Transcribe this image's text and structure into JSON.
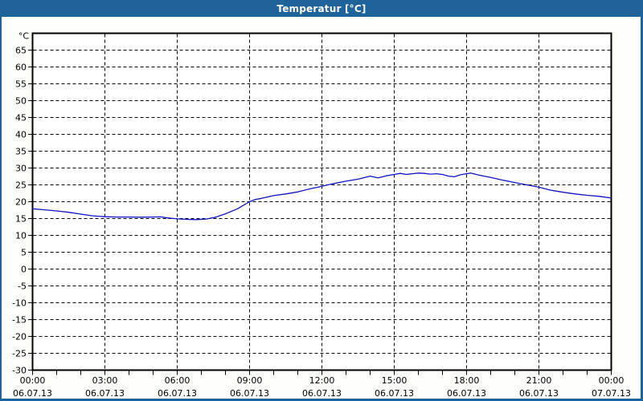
{
  "window": {
    "title": "Temperatur [°C]"
  },
  "colors": {
    "titlebar_bg": "#1e6399",
    "window_border": "#1e6399",
    "page_bg": "#fdfffd",
    "plot_bg": "#ffffff",
    "plot_border": "#000000",
    "grid": "#000000",
    "tick": "#000000",
    "label_text": "#000000",
    "title_text": "#ffffff",
    "line": "#1212c4"
  },
  "chart_data": {
    "type": "line",
    "title": "Temperatur [°C]",
    "ylabel_unit": "°C",
    "xlim_hours": [
      0,
      24
    ],
    "ylim": [
      -30,
      70
    ],
    "grid": "dashed",
    "y_tick_step": 5,
    "y_ticks": [
      65,
      60,
      55,
      50,
      45,
      40,
      35,
      30,
      25,
      20,
      15,
      10,
      5,
      0,
      -5,
      -10,
      -15,
      -20,
      -25,
      -30
    ],
    "x_major_ticks": [
      {
        "hour": 0,
        "time": "00:00",
        "date": "06.07.13"
      },
      {
        "hour": 3,
        "time": "03:00",
        "date": "06.07.13"
      },
      {
        "hour": 6,
        "time": "06:00",
        "date": "06.07.13"
      },
      {
        "hour": 9,
        "time": "09:00",
        "date": "06.07.13"
      },
      {
        "hour": 12,
        "time": "12:00",
        "date": "06.07.13"
      },
      {
        "hour": 15,
        "time": "15:00",
        "date": "06.07.13"
      },
      {
        "hour": 18,
        "time": "18:00",
        "date": "06.07.13"
      },
      {
        "hour": 21,
        "time": "21:00",
        "date": "06.07.13"
      },
      {
        "hour": 24,
        "time": "00:00",
        "date": "07.07.13"
      }
    ],
    "x_minor_tick_interval_hours": 1,
    "x_vertical_gridline_hours": [
      3,
      6,
      9,
      12,
      15,
      18,
      21
    ],
    "series": [
      {
        "name": "Temperatur",
        "x_hours": [
          0,
          0.5,
          1,
          1.5,
          2,
          2.5,
          3,
          3.5,
          4,
          4.5,
          5,
          5.3,
          5.6,
          6,
          6.4,
          6.8,
          7.2,
          7.6,
          8,
          8.5,
          9,
          9.25,
          9.5,
          10,
          10.5,
          11,
          11.5,
          12,
          12.5,
          13,
          13.5,
          14,
          14.33,
          14.67,
          15,
          15.25,
          15.5,
          15.75,
          16,
          16.25,
          16.5,
          16.75,
          17,
          17.25,
          17.5,
          17.75,
          18,
          18.17,
          18.5,
          19,
          19.5,
          20,
          20.5,
          21,
          21.5,
          22,
          22.5,
          23,
          23.5,
          24
        ],
        "y_celsius": [
          17.9,
          17.6,
          17.25,
          16.85,
          16.3,
          15.8,
          15.55,
          15.45,
          15.45,
          15.4,
          15.45,
          15.5,
          15.2,
          14.9,
          14.75,
          14.7,
          14.85,
          15.4,
          16.4,
          17.9,
          20.0,
          20.7,
          21.0,
          21.8,
          22.3,
          22.9,
          23.8,
          24.6,
          25.4,
          26.1,
          26.7,
          27.6,
          27.1,
          27.7,
          28.1,
          28.4,
          28.1,
          28.3,
          28.5,
          28.4,
          28.2,
          28.3,
          28.1,
          27.6,
          27.4,
          28.0,
          28.3,
          28.5,
          27.9,
          27.2,
          26.4,
          25.7,
          25.0,
          24.3,
          23.4,
          22.8,
          22.3,
          21.9,
          21.6,
          21.1
        ]
      }
    ]
  }
}
